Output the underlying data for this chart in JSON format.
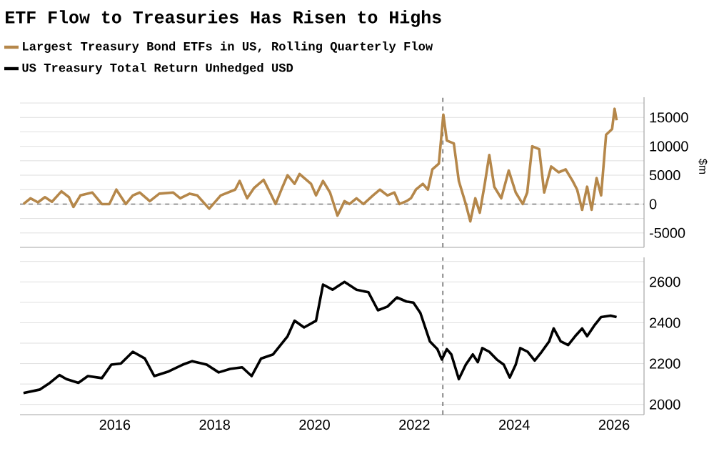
{
  "chart_data": [
    {
      "type": "line",
      "title": "ETF Flow to Treasuries Has Risen to Highs",
      "ylabel": "$m",
      "legend": "top",
      "grid": true,
      "tick_labels": "y",
      "line_style": "solid",
      "xlim": [
        2014.1,
        2026.6
      ],
      "ylim": [
        -7500,
        18500
      ],
      "yticks": [
        -5000,
        {
          "value": -2500,
          "label": null
        },
        0,
        {
          "value": 2500,
          "label": null
        },
        5000,
        {
          "value": 7500,
          "label": null
        },
        10000,
        {
          "value": 12500,
          "label": null
        },
        15000,
        {
          "value": 17500,
          "label": null
        }
      ],
      "ref_lines": [
        {
          "axis": "y",
          "value": 0,
          "line_style": "dashed",
          "color": "#777777"
        },
        {
          "axis": "x",
          "value": 2022.57,
          "line_style": "dashed",
          "color": "#555555"
        }
      ],
      "series": [
        {
          "name": "Largest Treasury Bond ETFs in US, Rolling Quarterly Flow",
          "color": "#b5874a",
          "x": [
            2014.17,
            2014.31,
            2014.46,
            2014.6,
            2014.74,
            2014.93,
            2015.08,
            2015.17,
            2015.31,
            2015.55,
            2015.74,
            2015.89,
            2016.03,
            2016.22,
            2016.36,
            2016.5,
            2016.7,
            2016.89,
            2017.17,
            2017.31,
            2017.5,
            2017.65,
            2017.89,
            2018.12,
            2018.41,
            2018.5,
            2018.65,
            2018.79,
            2018.98,
            2019.12,
            2019.22,
            2019.36,
            2019.46,
            2019.6,
            2019.7,
            2019.93,
            2020.03,
            2020.17,
            2020.31,
            2020.46,
            2020.6,
            2020.7,
            2020.84,
            2020.98,
            2021.17,
            2021.31,
            2021.46,
            2021.6,
            2021.7,
            2021.84,
            2021.93,
            2022.03,
            2022.17,
            2022.27,
            2022.36,
            2022.49,
            2022.58,
            2022.65,
            2022.79,
            2022.89,
            2023.03,
            2023.12,
            2023.22,
            2023.31,
            2023.41,
            2023.5,
            2023.6,
            2023.74,
            2023.89,
            2024.03,
            2024.17,
            2024.26,
            2024.36,
            2024.5,
            2024.6,
            2024.74,
            2024.89,
            2025.03,
            2025.17,
            2025.26,
            2025.36,
            2025.46,
            2025.55,
            2025.65,
            2025.74,
            2025.84,
            2025.96,
            2026.01,
            2026.05
          ],
          "values": [
            0,
            1000,
            300,
            1200,
            400,
            2200,
            1200,
            -500,
            1500,
            2000,
            0,
            0,
            2500,
            0,
            1500,
            2000,
            500,
            1800,
            2000,
            1000,
            1800,
            1500,
            -800,
            1500,
            2500,
            4000,
            1000,
            2800,
            4200,
            1800,
            0,
            3000,
            5000,
            3500,
            5200,
            3500,
            1500,
            4000,
            2000,
            -2000,
            500,
            0,
            1000,
            0,
            1500,
            2500,
            1500,
            2000,
            0,
            500,
            1000,
            2500,
            3500,
            2500,
            6000,
            7000,
            15500,
            11000,
            10500,
            4000,
            0,
            -3000,
            1000,
            -1500,
            3500,
            8500,
            3000,
            1000,
            5800,
            2000,
            0,
            2000,
            10000,
            9500,
            2000,
            6500,
            5500,
            6000,
            4000,
            2500,
            -1000,
            3000,
            -1000,
            4500,
            1500,
            12000,
            13000,
            16500,
            14500
          ]
        }
      ]
    },
    {
      "type": "line",
      "legend": "top",
      "grid": true,
      "line_style": "solid",
      "xlim": [
        2014.1,
        2026.6
      ],
      "xticks": [
        2016,
        2018,
        2020,
        2022,
        2024,
        2026
      ],
      "ylim": [
        1950,
        2720
      ],
      "yticks": [
        2000,
        {
          "value": 2100,
          "label": null
        },
        2200,
        {
          "value": 2300,
          "label": null
        },
        2400,
        {
          "value": 2500,
          "label": null
        },
        2600,
        {
          "value": 2700,
          "label": null
        }
      ],
      "ref_lines": [
        {
          "axis": "x",
          "value": 2022.57,
          "line_style": "dashed",
          "color": "#555555"
        }
      ],
      "series": [
        {
          "name": "US Treasury Total Return Unhedged USD",
          "color": "#000000",
          "x": [
            2014.17,
            2014.5,
            2014.7,
            2014.89,
            2015.03,
            2015.27,
            2015.46,
            2015.74,
            2015.93,
            2016.12,
            2016.36,
            2016.6,
            2016.79,
            2017.08,
            2017.36,
            2017.55,
            2017.84,
            2018.08,
            2018.31,
            2018.55,
            2018.74,
            2018.93,
            2019.17,
            2019.46,
            2019.6,
            2019.79,
            2020.03,
            2020.17,
            2020.36,
            2020.6,
            2020.84,
            2021.08,
            2021.27,
            2021.46,
            2021.65,
            2021.84,
            2021.98,
            2022.12,
            2022.31,
            2022.46,
            2022.55,
            2022.65,
            2022.74,
            2022.89,
            2023.03,
            2023.17,
            2023.27,
            2023.36,
            2023.5,
            2023.65,
            2023.79,
            2023.91,
            2024.03,
            2024.12,
            2024.27,
            2024.41,
            2024.55,
            2024.7,
            2024.79,
            2024.93,
            2025.08,
            2025.22,
            2025.36,
            2025.46,
            2025.6,
            2025.74,
            2025.93,
            2026.05
          ],
          "values": [
            2056,
            2073,
            2106,
            2144,
            2124,
            2106,
            2139,
            2129,
            2195,
            2200,
            2258,
            2225,
            2139,
            2162,
            2195,
            2212,
            2195,
            2157,
            2174,
            2182,
            2139,
            2225,
            2245,
            2334,
            2410,
            2377,
            2410,
            2587,
            2562,
            2600,
            2562,
            2549,
            2461,
            2479,
            2524,
            2504,
            2499,
            2448,
            2309,
            2271,
            2220,
            2271,
            2245,
            2124,
            2195,
            2245,
            2207,
            2276,
            2258,
            2220,
            2195,
            2132,
            2195,
            2276,
            2258,
            2215,
            2258,
            2309,
            2372,
            2309,
            2291,
            2334,
            2372,
            2334,
            2385,
            2428,
            2435,
            2428
          ]
        }
      ]
    }
  ]
}
